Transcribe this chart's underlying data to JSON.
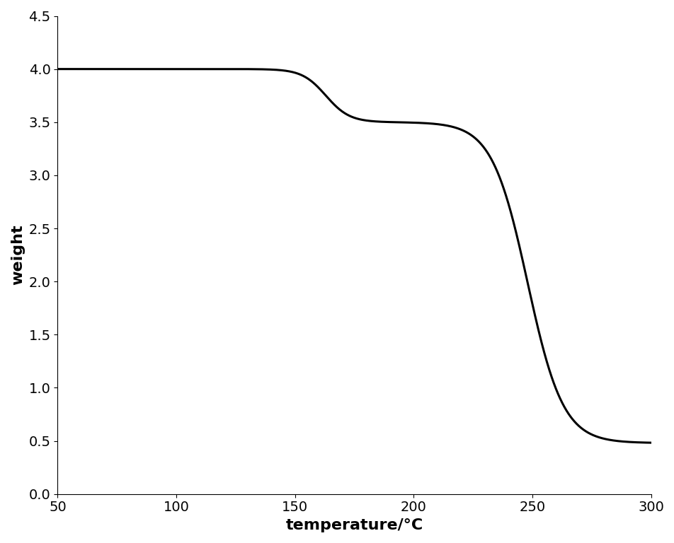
{
  "title": "",
  "xlabel": "temperature/°C",
  "ylabel": "weight",
  "xlim": [
    50,
    300
  ],
  "ylim": [
    0.0,
    4.5
  ],
  "xticks": [
    50,
    100,
    150,
    200,
    250,
    300
  ],
  "yticks": [
    0.0,
    0.5,
    1.0,
    1.5,
    2.0,
    2.5,
    3.0,
    3.5,
    4.0,
    4.5
  ],
  "line_color": "#000000",
  "line_width": 2.2,
  "background_color": "#ffffff",
  "xlabel_fontsize": 16,
  "ylabel_fontsize": 16,
  "tick_fontsize": 14
}
